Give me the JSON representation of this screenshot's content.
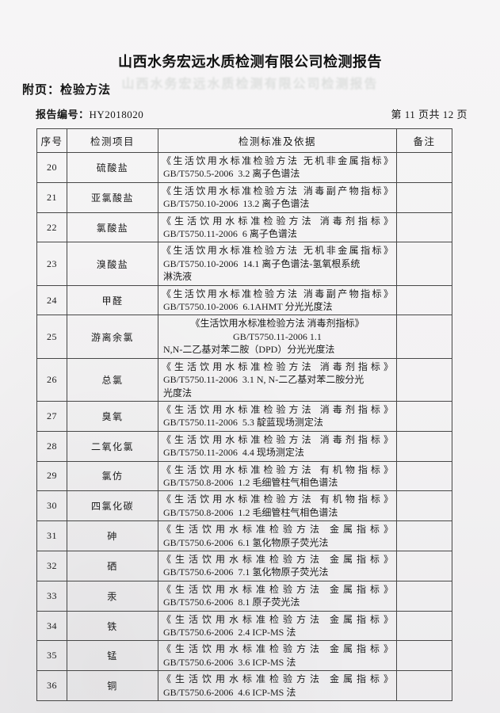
{
  "page": {
    "title": "山西水务宏远水质检测有限公司检测报告",
    "subtitle": "附页：检验方法",
    "report_no_label": "报告编号：",
    "report_no": "HY2018020",
    "page_indicator": "第 11 页共 12 页"
  },
  "colors": {
    "paper": "#f3f2f3",
    "ink": "#1b1b1b",
    "table_border": "#474747",
    "ghost_bleedthrough": "#5f6e62"
  },
  "table": {
    "headers": [
      "序号",
      "检测项目",
      "检测标准及依据",
      "备注"
    ],
    "rows": [
      {
        "no": "20",
        "item": "硫酸盐",
        "remark": "",
        "lines": [
          {
            "text": "《生活饮用水标准检验方法 无机非金属指标》",
            "align": "justify"
          },
          {
            "text": "GB/T5750.5-2006  3.2 离子色谱法",
            "align": "left"
          }
        ]
      },
      {
        "no": "21",
        "item": "亚氯酸盐",
        "remark": "",
        "lines": [
          {
            "text": "《生活饮用水标准检验方法 消毒副产物指标》",
            "align": "justify"
          },
          {
            "text": "GB/T5750.10-2006  13.2 离子色谱法",
            "align": "left"
          }
        ]
      },
      {
        "no": "22",
        "item": "氯酸盐",
        "remark": "",
        "lines": [
          {
            "text": "《生活饮用水标准检验方法 消毒剂指标》",
            "align": "justify"
          },
          {
            "text": "GB/T5750.11-2006  6 离子色谱法",
            "align": "left"
          }
        ]
      },
      {
        "no": "23",
        "item": "溴酸盐",
        "remark": "",
        "lines": [
          {
            "text": "《生活饮用水标准检验方法 无机非金属指标》",
            "align": "justify"
          },
          {
            "text": "GB/T5750.10-2006  14.1 离子色谱法-氢氧根系统",
            "align": "left"
          },
          {
            "text": "淋洗液",
            "align": "left"
          }
        ]
      },
      {
        "no": "24",
        "item": "甲醛",
        "remark": "",
        "lines": [
          {
            "text": "《生活饮用水标准检验方法 消毒副产物指标》",
            "align": "justify"
          },
          {
            "text": "GB/T5750.10-2006  6.1AHMT 分光光度法",
            "align": "left"
          }
        ]
      },
      {
        "no": "25",
        "item": "游离余氯",
        "remark": "",
        "lines": [
          {
            "text": "《生活饮用水标准检验方法 消毒剂指标》",
            "align": "center"
          },
          {
            "text": "GB/T5750.11-2006 1.1",
            "align": "center"
          },
          {
            "text": "N,N-二乙基对苯二胺（DPD）分光光度法",
            "align": "left"
          }
        ]
      },
      {
        "no": "26",
        "item": "总氯",
        "remark": "",
        "lines": [
          {
            "text": "《生活饮用水标准检验方法 消毒剂指标》",
            "align": "justify"
          },
          {
            "text": "GB/T5750.11-2006  3.1 N, N-二乙基对苯二胺分光",
            "align": "left"
          },
          {
            "text": "光度法",
            "align": "left"
          }
        ]
      },
      {
        "no": "27",
        "item": "臭氧",
        "remark": "",
        "lines": [
          {
            "text": "《生活饮用水标准检验方法 消毒剂指标》",
            "align": "justify"
          },
          {
            "text": "GB/T5750.11-2006  5.3 靛蓝现场测定法",
            "align": "left"
          }
        ]
      },
      {
        "no": "28",
        "item": "二氧化氯",
        "remark": "",
        "lines": [
          {
            "text": "《生活饮用水标准检验方法 消毒剂指标》",
            "align": "justify"
          },
          {
            "text": "GB/T5750.11-2006  4.4 现场测定法",
            "align": "left"
          }
        ]
      },
      {
        "no": "29",
        "item": "氯仿",
        "remark": "",
        "lines": [
          {
            "text": "《生活饮用水标准检验方法 有机物指标》",
            "align": "justify"
          },
          {
            "text": "GB/T5750.8-2006  1.2 毛细管柱气相色谱法",
            "align": "left"
          }
        ]
      },
      {
        "no": "30",
        "item": "四氯化碳",
        "remark": "",
        "lines": [
          {
            "text": "《生活饮用水标准检验方法 有机物指标》",
            "align": "justify"
          },
          {
            "text": "GB/T5750.8-2006  1.2 毛细管柱气相色谱法",
            "align": "left"
          }
        ]
      },
      {
        "no": "31",
        "item": "砷",
        "remark": "",
        "lines": [
          {
            "text": "《生活饮用水标准检验方法 金属指标》",
            "align": "justify"
          },
          {
            "text": "GB/T5750.6-2006  6.1 氢化物原子荧光法",
            "align": "left"
          }
        ]
      },
      {
        "no": "32",
        "item": "硒",
        "remark": "",
        "lines": [
          {
            "text": "《生活饮用水标准检验方法 金属指标》",
            "align": "justify"
          },
          {
            "text": "GB/T5750.6-2006  7.1 氢化物原子荧光法",
            "align": "left"
          }
        ]
      },
      {
        "no": "33",
        "item": "汞",
        "remark": "",
        "lines": [
          {
            "text": "《生活饮用水标准检验方法 金属指标》",
            "align": "justify"
          },
          {
            "text": "GB/T5750.6-2006  8.1 原子荧光法",
            "align": "left"
          }
        ]
      },
      {
        "no": "34",
        "item": "铁",
        "remark": "",
        "lines": [
          {
            "text": "《生活饮用水标准检验方法 金属指标》",
            "align": "justify"
          },
          {
            "text": "GB/T5750.6-2006  2.4 ICP-MS 法",
            "align": "left"
          }
        ]
      },
      {
        "no": "35",
        "item": "锰",
        "remark": "",
        "lines": [
          {
            "text": "《生活饮用水标准检验方法 金属指标》",
            "align": "justify"
          },
          {
            "text": "GB/T5750.6-2006  3.6 ICP-MS 法",
            "align": "left"
          }
        ]
      },
      {
        "no": "36",
        "item": "铜",
        "remark": "",
        "lines": [
          {
            "text": "《生活饮用水标准检验方法 金属指标》",
            "align": "justify"
          },
          {
            "text": "GB/T5750.6-2006  4.6 ICP-MS 法",
            "align": "left"
          }
        ]
      }
    ]
  }
}
